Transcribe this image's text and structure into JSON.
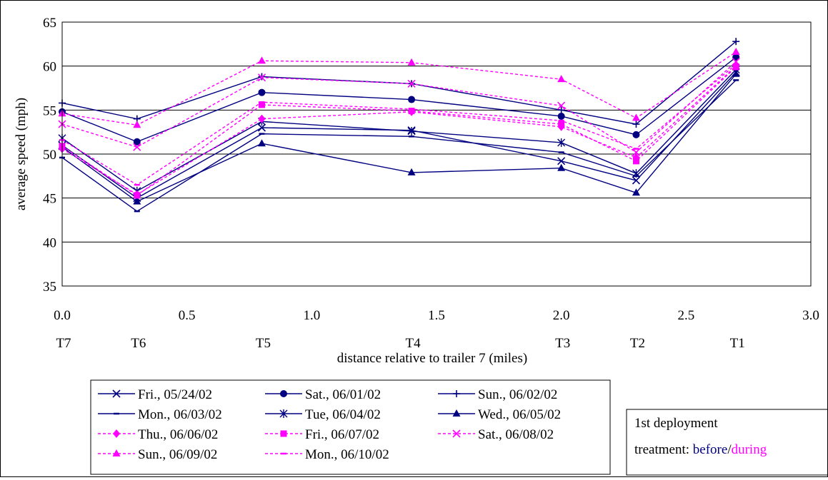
{
  "chart_data": {
    "type": "line",
    "title": "",
    "xlabel": "distance relative to trailer 7 (miles)",
    "ylabel": "average speed (mph)",
    "xlim": [
      0.0,
      3.0
    ],
    "ylim": [
      35,
      65
    ],
    "x_ticks": [
      "0.0",
      "0.5",
      "1.0",
      "1.5",
      "2.0",
      "2.5",
      "3.0"
    ],
    "y_ticks": [
      "35",
      "40",
      "45",
      "50",
      "55",
      "60",
      "65"
    ],
    "grid": "horizontal",
    "x": [
      0.0,
      0.3,
      0.8,
      1.4,
      2.0,
      2.3,
      2.7
    ],
    "trailer_labels": [
      "T7",
      "T6",
      "T5",
      "T4",
      "T3",
      "T2",
      "T1"
    ],
    "series": [
      {
        "name": "Fri., 05/24/02",
        "treatment": "before",
        "marker": "x",
        "values": [
          51.0,
          45.0,
          53.0,
          52.7,
          49.2,
          47.0,
          59.3
        ]
      },
      {
        "name": "Sat., 06/01/02",
        "treatment": "before",
        "marker": "circle",
        "values": [
          54.8,
          51.4,
          57.0,
          56.2,
          54.3,
          52.2,
          61.0
        ]
      },
      {
        "name": "Sun., 06/02/02",
        "treatment": "before",
        "marker": "plus",
        "values": [
          55.8,
          54.0,
          58.8,
          58.0,
          55.0,
          53.4,
          62.8
        ]
      },
      {
        "name": "Mon., 06/03/02",
        "treatment": "before",
        "marker": "dash",
        "values": [
          49.6,
          43.5,
          52.3,
          52.0,
          50.2,
          47.5,
          58.4
        ]
      },
      {
        "name": "Tue, 06/04/02",
        "treatment": "before",
        "marker": "asterisk",
        "values": [
          51.8,
          45.8,
          53.7,
          52.6,
          51.3,
          47.8,
          59.6
        ]
      },
      {
        "name": "Wed., 06/05/02",
        "treatment": "before",
        "marker": "triangle",
        "values": [
          50.8,
          44.6,
          51.2,
          47.9,
          48.4,
          45.6,
          59.1
        ]
      },
      {
        "name": "Thu., 06/06/02",
        "treatment": "during",
        "marker": "diamond",
        "values": [
          50.6,
          45.4,
          54.0,
          54.8,
          53.1,
          49.6,
          60.0
        ]
      },
      {
        "name": "Fri., 06/07/02",
        "treatment": "during",
        "marker": "square",
        "values": [
          50.9,
          45.3,
          55.6,
          54.9,
          53.4,
          49.2,
          59.9
        ]
      },
      {
        "name": "Sat., 06/08/02",
        "treatment": "during",
        "marker": "x",
        "values": [
          53.4,
          50.8,
          58.7,
          58.0,
          55.5,
          50.2,
          60.5
        ]
      },
      {
        "name": "Sun., 06/09/02",
        "treatment": "during",
        "marker": "triangle",
        "values": [
          54.6,
          53.3,
          60.6,
          60.4,
          58.5,
          54.1,
          61.6
        ]
      },
      {
        "name": "Mon., 06/10/02",
        "treatment": "during",
        "marker": "dash",
        "values": [
          51.6,
          46.5,
          55.9,
          55.1,
          53.8,
          50.6,
          60.2
        ]
      }
    ],
    "legend_position": "bottom"
  },
  "colors": {
    "before": "#000080",
    "during": "#ff00ff",
    "grid": "#000000"
  },
  "info_box": {
    "line1": "1st deployment",
    "prefix": "treatment: ",
    "before": "before",
    "slash": "/",
    "during": "during"
  }
}
